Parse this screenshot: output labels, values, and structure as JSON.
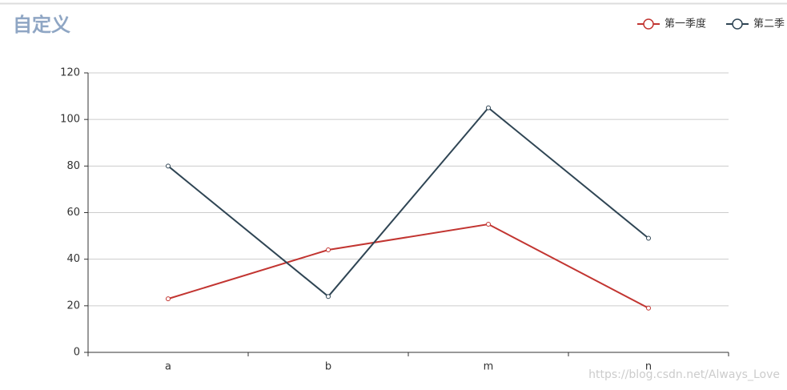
{
  "chart_data": {
    "type": "line",
    "title": "自定义",
    "categories": [
      "a",
      "b",
      "m",
      "n"
    ],
    "series": [
      {
        "name": "第一季度",
        "color": "#c23531",
        "values": [
          23,
          44,
          55,
          19
        ]
      },
      {
        "name": "第二季",
        "color": "#2f4554",
        "values": [
          80,
          24,
          105,
          49
        ]
      }
    ],
    "ylim": [
      0,
      120
    ],
    "yticks": [
      0,
      20,
      40,
      60,
      80,
      100,
      120
    ],
    "grid": true,
    "legend": "top-right",
    "watermark": "https://blog.csdn.net/Always_Love"
  }
}
